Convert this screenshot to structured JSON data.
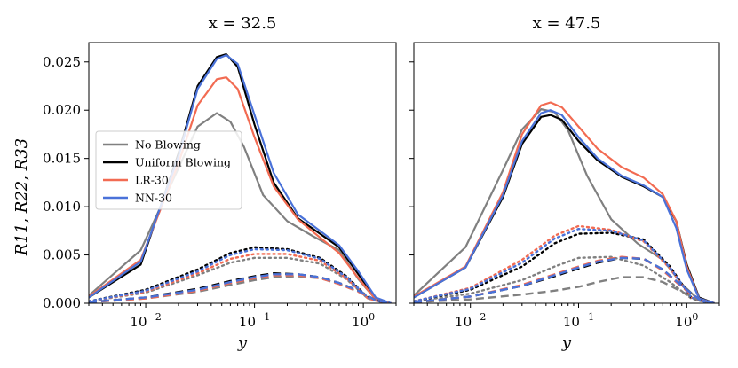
{
  "colors": {
    "no_blowing": "#808080",
    "uniform_blowing": "#000000",
    "lr_30": "#f26b52",
    "nn_30": "#4a72d9"
  },
  "chart_data": [
    {
      "type": "line",
      "title": "x = 32.5",
      "xlabel": "y",
      "ylabel": "R11, R22, R33",
      "xscale": "log",
      "xlim": [
        0.003,
        2.0
      ],
      "ylim": [
        0,
        0.027
      ],
      "yticks": [
        "0.000",
        "0.005",
        "0.010",
        "0.015",
        "0.020",
        "0.025"
      ],
      "xticks": [
        "10^-2",
        "10^-1",
        "10^0"
      ],
      "legend": {
        "position": "center-left",
        "entries": [
          "No Blowing",
          "Uniform Blowing",
          "LR-30",
          "NN-30"
        ]
      },
      "series": [
        {
          "name": "No Blowing",
          "component": "R11",
          "style": "solid",
          "x": [
            0.003,
            0.009,
            0.02,
            0.03,
            0.045,
            0.06,
            0.08,
            0.12,
            0.2,
            0.35,
            0.6,
            0.9,
            1.3,
            1.8
          ],
          "y": [
            0.0008,
            0.0055,
            0.014,
            0.0183,
            0.0197,
            0.0188,
            0.0162,
            0.0112,
            0.0085,
            0.0069,
            0.0055,
            0.0025,
            0.0004,
            0.0
          ]
        },
        {
          "name": "Uniform Blowing",
          "component": "R11",
          "style": "solid",
          "x": [
            0.003,
            0.009,
            0.02,
            0.03,
            0.045,
            0.055,
            0.07,
            0.1,
            0.15,
            0.25,
            0.4,
            0.6,
            0.9,
            1.3,
            1.8
          ],
          "y": [
            0.0006,
            0.004,
            0.0155,
            0.0225,
            0.0255,
            0.0258,
            0.0245,
            0.0185,
            0.0125,
            0.0088,
            0.0072,
            0.0058,
            0.003,
            0.0005,
            0.0
          ]
        },
        {
          "name": "LR-30",
          "component": "R11",
          "style": "solid",
          "x": [
            0.003,
            0.009,
            0.02,
            0.03,
            0.045,
            0.055,
            0.07,
            0.1,
            0.15,
            0.25,
            0.4,
            0.6,
            0.9,
            1.3,
            1.8
          ],
          "y": [
            0.0007,
            0.0045,
            0.0145,
            0.0205,
            0.0232,
            0.0234,
            0.0222,
            0.0172,
            0.0121,
            0.0087,
            0.0068,
            0.0052,
            0.0026,
            0.0004,
            0.0
          ]
        },
        {
          "name": "NN-30",
          "component": "R11",
          "style": "solid",
          "x": [
            0.003,
            0.009,
            0.02,
            0.03,
            0.045,
            0.055,
            0.07,
            0.1,
            0.15,
            0.25,
            0.4,
            0.6,
            0.9,
            1.3,
            1.8
          ],
          "y": [
            0.0006,
            0.0043,
            0.0152,
            0.0222,
            0.0253,
            0.0257,
            0.0248,
            0.0195,
            0.0135,
            0.0092,
            0.0075,
            0.006,
            0.0033,
            0.0006,
            0.0
          ]
        },
        {
          "name": "No Blowing",
          "component": "R22",
          "style": "dotted",
          "x": [
            0.003,
            0.01,
            0.03,
            0.06,
            0.1,
            0.2,
            0.4,
            0.7,
            1.1,
            1.6
          ],
          "y": [
            0.0002,
            0.0011,
            0.0029,
            0.0042,
            0.0047,
            0.0047,
            0.0041,
            0.0025,
            0.0005,
            0.0
          ]
        },
        {
          "name": "Uniform Blowing",
          "component": "R22",
          "style": "dotted",
          "x": [
            0.003,
            0.01,
            0.03,
            0.06,
            0.1,
            0.2,
            0.4,
            0.7,
            1.1,
            1.6
          ],
          "y": [
            0.0002,
            0.0014,
            0.0035,
            0.0052,
            0.0058,
            0.0056,
            0.0047,
            0.0028,
            0.0006,
            0.0
          ]
        },
        {
          "name": "LR-30",
          "component": "R22",
          "style": "dotted",
          "x": [
            0.003,
            0.01,
            0.03,
            0.06,
            0.1,
            0.2,
            0.4,
            0.7,
            1.1,
            1.6
          ],
          "y": [
            0.0002,
            0.0012,
            0.0031,
            0.0046,
            0.0051,
            0.0051,
            0.0044,
            0.0026,
            0.0005,
            0.0
          ]
        },
        {
          "name": "NN-30",
          "component": "R22",
          "style": "dotted",
          "x": [
            0.003,
            0.01,
            0.03,
            0.06,
            0.1,
            0.2,
            0.4,
            0.7,
            1.1,
            1.6
          ],
          "y": [
            0.0002,
            0.0013,
            0.0033,
            0.005,
            0.0056,
            0.0055,
            0.0046,
            0.0027,
            0.0006,
            0.0
          ]
        },
        {
          "name": "No Blowing",
          "component": "R33",
          "style": "dashed",
          "x": [
            0.003,
            0.01,
            0.03,
            0.06,
            0.1,
            0.15,
            0.25,
            0.4,
            0.6,
            0.9,
            1.3,
            1.8
          ],
          "y": [
            0.0001,
            0.0005,
            0.0012,
            0.0019,
            0.0024,
            0.0027,
            0.0028,
            0.0026,
            0.002,
            0.0012,
            0.0003,
            0.0
          ]
        },
        {
          "name": "Uniform Blowing",
          "component": "R33",
          "style": "dashed",
          "x": [
            0.003,
            0.01,
            0.03,
            0.06,
            0.1,
            0.15,
            0.25,
            0.4,
            0.6,
            0.9,
            1.3,
            1.8
          ],
          "y": [
            0.0001,
            0.0006,
            0.0015,
            0.0023,
            0.0028,
            0.0031,
            0.003,
            0.0027,
            0.0021,
            0.0013,
            0.0003,
            0.0
          ]
        },
        {
          "name": "LR-30",
          "component": "R33",
          "style": "dashed",
          "x": [
            0.003,
            0.01,
            0.03,
            0.06,
            0.1,
            0.15,
            0.25,
            0.4,
            0.6,
            0.9,
            1.3,
            1.8
          ],
          "y": [
            0.0001,
            0.0005,
            0.0013,
            0.0021,
            0.0026,
            0.0029,
            0.0029,
            0.0026,
            0.002,
            0.0012,
            0.0003,
            0.0
          ]
        },
        {
          "name": "NN-30",
          "component": "R33",
          "style": "dashed",
          "x": [
            0.003,
            0.01,
            0.03,
            0.06,
            0.1,
            0.15,
            0.25,
            0.4,
            0.6,
            0.9,
            1.3,
            1.8
          ],
          "y": [
            0.0001,
            0.0006,
            0.0014,
            0.0022,
            0.0027,
            0.003,
            0.003,
            0.0027,
            0.0021,
            0.0013,
            0.0003,
            0.0
          ]
        }
      ]
    },
    {
      "type": "line",
      "title": "x = 47.5",
      "xlabel": "y",
      "ylabel": "",
      "xscale": "log",
      "xlim": [
        0.003,
        2.0
      ],
      "ylim": [
        0,
        0.027
      ],
      "xticks": [
        "10^-2",
        "10^-1",
        "10^0"
      ],
      "series": [
        {
          "name": "No Blowing",
          "component": "R11",
          "style": "solid",
          "x": [
            0.003,
            0.009,
            0.02,
            0.03,
            0.045,
            0.06,
            0.08,
            0.12,
            0.2,
            0.35,
            0.6,
            0.9,
            1.3,
            1.8
          ],
          "y": [
            0.0008,
            0.0058,
            0.0138,
            0.018,
            0.0201,
            0.0198,
            0.0179,
            0.0132,
            0.0087,
            0.0062,
            0.0045,
            0.002,
            0.0003,
            0.0
          ]
        },
        {
          "name": "Uniform Blowing",
          "component": "R11",
          "style": "solid",
          "x": [
            0.003,
            0.009,
            0.02,
            0.03,
            0.045,
            0.055,
            0.07,
            0.1,
            0.15,
            0.25,
            0.4,
            0.6,
            0.8,
            1.0,
            1.3,
            1.8
          ],
          "y": [
            0.0006,
            0.0037,
            0.011,
            0.0165,
            0.0193,
            0.0195,
            0.019,
            0.0168,
            0.0148,
            0.0131,
            0.0121,
            0.011,
            0.0085,
            0.004,
            0.0006,
            0.0
          ]
        },
        {
          "name": "LR-30",
          "component": "R11",
          "style": "solid",
          "x": [
            0.003,
            0.009,
            0.02,
            0.03,
            0.045,
            0.055,
            0.07,
            0.1,
            0.15,
            0.25,
            0.4,
            0.6,
            0.8,
            1.0,
            1.3,
            1.8
          ],
          "y": [
            0.0007,
            0.0038,
            0.0115,
            0.0175,
            0.0205,
            0.0208,
            0.0203,
            0.0183,
            0.016,
            0.0141,
            0.013,
            0.0113,
            0.0085,
            0.0038,
            0.0005,
            0.0
          ]
        },
        {
          "name": "NN-30",
          "component": "R11",
          "style": "solid",
          "x": [
            0.003,
            0.009,
            0.02,
            0.03,
            0.045,
            0.055,
            0.07,
            0.1,
            0.15,
            0.25,
            0.4,
            0.6,
            0.8,
            1.0,
            1.3,
            1.8
          ],
          "y": [
            0.0006,
            0.0037,
            0.0112,
            0.0168,
            0.0197,
            0.02,
            0.0195,
            0.0172,
            0.015,
            0.0132,
            0.0122,
            0.011,
            0.0078,
            0.0035,
            0.0005,
            0.0
          ]
        },
        {
          "name": "No Blowing",
          "component": "R22",
          "style": "dotted",
          "x": [
            0.003,
            0.01,
            0.03,
            0.06,
            0.1,
            0.2,
            0.4,
            0.7,
            1.1,
            1.6
          ],
          "y": [
            0.0002,
            0.001,
            0.0024,
            0.0038,
            0.0047,
            0.0048,
            0.0039,
            0.0022,
            0.0005,
            0.0
          ]
        },
        {
          "name": "Uniform Blowing",
          "component": "R22",
          "style": "dotted",
          "x": [
            0.003,
            0.01,
            0.03,
            0.06,
            0.1,
            0.2,
            0.4,
            0.7,
            1.1,
            1.6
          ],
          "y": [
            0.0002,
            0.0014,
            0.0038,
            0.0062,
            0.0072,
            0.0073,
            0.0066,
            0.0038,
            0.0006,
            0.0
          ]
        },
        {
          "name": "LR-30",
          "component": "R22",
          "style": "dotted",
          "x": [
            0.003,
            0.01,
            0.03,
            0.06,
            0.1,
            0.2,
            0.4,
            0.7,
            1.1,
            1.6
          ],
          "y": [
            0.0002,
            0.0016,
            0.0045,
            0.007,
            0.008,
            0.0076,
            0.0064,
            0.0036,
            0.0006,
            0.0
          ]
        },
        {
          "name": "NN-30",
          "component": "R22",
          "style": "dotted",
          "x": [
            0.003,
            0.01,
            0.03,
            0.06,
            0.1,
            0.2,
            0.4,
            0.7,
            1.1,
            1.6
          ],
          "y": [
            0.0002,
            0.0015,
            0.0042,
            0.0067,
            0.0077,
            0.0075,
            0.0065,
            0.0037,
            0.0006,
            0.0
          ]
        },
        {
          "name": "No Blowing",
          "component": "R33",
          "style": "dashed",
          "x": [
            0.003,
            0.01,
            0.03,
            0.06,
            0.1,
            0.15,
            0.25,
            0.4,
            0.6,
            0.9,
            1.3,
            1.8
          ],
          "y": [
            0.0001,
            0.0004,
            0.0009,
            0.0013,
            0.0017,
            0.0022,
            0.0027,
            0.0027,
            0.0022,
            0.0012,
            0.0003,
            0.0
          ]
        },
        {
          "name": "Uniform Blowing",
          "component": "R33",
          "style": "dashed",
          "x": [
            0.003,
            0.01,
            0.03,
            0.06,
            0.1,
            0.15,
            0.25,
            0.4,
            0.6,
            0.9,
            1.3,
            1.8
          ],
          "y": [
            0.0001,
            0.0007,
            0.0018,
            0.0028,
            0.0036,
            0.0042,
            0.0047,
            0.0046,
            0.0035,
            0.0018,
            0.0004,
            0.0
          ]
        },
        {
          "name": "LR-30",
          "component": "R33",
          "style": "dashed",
          "x": [
            0.003,
            0.01,
            0.03,
            0.06,
            0.1,
            0.15,
            0.25,
            0.4,
            0.6,
            0.9,
            1.3,
            1.8
          ],
          "y": [
            0.0001,
            0.0007,
            0.0019,
            0.003,
            0.0038,
            0.0044,
            0.0048,
            0.0046,
            0.0034,
            0.0017,
            0.0004,
            0.0
          ]
        },
        {
          "name": "NN-30",
          "component": "R33",
          "style": "dashed",
          "x": [
            0.003,
            0.01,
            0.03,
            0.06,
            0.1,
            0.15,
            0.25,
            0.4,
            0.6,
            0.9,
            1.3,
            1.8
          ],
          "y": [
            0.0001,
            0.0007,
            0.0018,
            0.0029,
            0.0037,
            0.0043,
            0.0047,
            0.0046,
            0.0035,
            0.0018,
            0.0004,
            0.0
          ]
        }
      ]
    }
  ]
}
